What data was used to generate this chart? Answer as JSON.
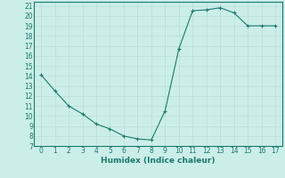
{
  "x": [
    0,
    1,
    2,
    3,
    4,
    5,
    6,
    7,
    8,
    9,
    10,
    11,
    12,
    13,
    14,
    15,
    16,
    17
  ],
  "y": [
    14.1,
    12.5,
    11.0,
    10.2,
    9.2,
    8.7,
    8.0,
    7.7,
    7.6,
    10.5,
    16.7,
    20.5,
    20.6,
    20.8,
    20.3,
    19.0,
    19.0,
    19.0
  ],
  "line_color": "#1a7a6e",
  "marker": "+",
  "bg_color": "#cceee8",
  "grid_color": "#b8ddd8",
  "xlabel": "Humidex (Indice chaleur)",
  "xlim": [
    -0.5,
    17.5
  ],
  "ylim": [
    7,
    21.4
  ],
  "xticks": [
    0,
    1,
    2,
    3,
    4,
    5,
    6,
    7,
    8,
    9,
    10,
    11,
    12,
    13,
    14,
    15,
    16,
    17
  ],
  "yticks": [
    7,
    8,
    9,
    10,
    11,
    12,
    13,
    14,
    15,
    16,
    17,
    18,
    19,
    20,
    21
  ],
  "fontsize_ticks": 5.5,
  "fontsize_xlabel": 6.5,
  "linewidth": 0.8,
  "markersize": 3.5,
  "markeredgewidth": 0.8
}
